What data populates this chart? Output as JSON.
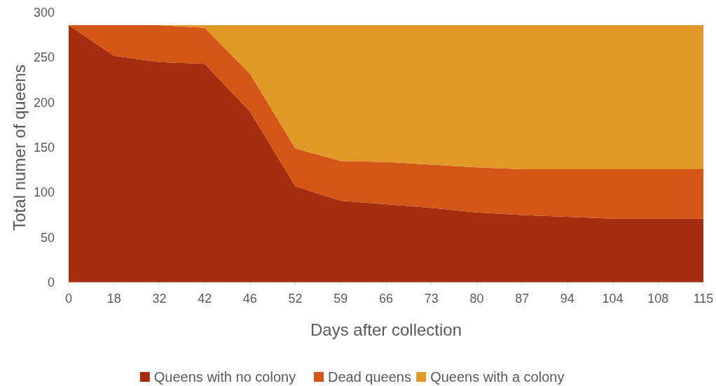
{
  "chart_data": {
    "type": "area",
    "stacked": true,
    "xlabel": "Days after collection",
    "ylabel": "Total numer of queens",
    "categories": [
      "0",
      "18",
      "32",
      "42",
      "46",
      "52",
      "59",
      "66",
      "73",
      "80",
      "87",
      "94",
      "104",
      "108",
      "115"
    ],
    "series": [
      {
        "name": "Queens with no colony",
        "color": "#a52e10",
        "values": [
          286,
          252,
          245,
          243,
          190,
          107,
          91,
          87,
          83,
          78,
          75,
          73,
          71,
          71,
          71
        ]
      },
      {
        "name": "Dead queens",
        "color": "#d45616",
        "values": [
          0,
          34,
          41,
          40,
          42,
          42,
          44,
          47,
          48,
          50,
          51,
          53,
          55,
          55,
          55
        ]
      },
      {
        "name": "Queens with a colony",
        "color": "#e09826",
        "values": [
          0,
          0,
          0,
          3,
          54,
          137,
          151,
          152,
          155,
          158,
          160,
          160,
          160,
          160,
          160
        ]
      }
    ],
    "ylim": [
      0,
      300
    ],
    "yticks": [
      0,
      50,
      100,
      150,
      200,
      250,
      300
    ],
    "legend": "bottom"
  }
}
